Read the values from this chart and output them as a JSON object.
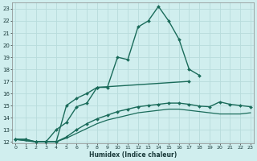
{
  "xlabel": "Humidex (Indice chaleur)",
  "bg_color": "#d0eeee",
  "grid_color": "#b8dcdc",
  "line_color": "#1a6b5a",
  "xlim": [
    -0.3,
    23.3
  ],
  "ylim": [
    11.85,
    23.5
  ],
  "yticks": [
    12,
    13,
    14,
    15,
    16,
    17,
    18,
    19,
    20,
    21,
    22,
    23
  ],
  "xticks": [
    0,
    1,
    2,
    3,
    4,
    5,
    6,
    7,
    8,
    9,
    10,
    11,
    12,
    13,
    14,
    15,
    16,
    17,
    18,
    19,
    20,
    21,
    22,
    23
  ],
  "lines": [
    {
      "x": [
        0,
        1,
        2,
        3,
        4,
        5,
        6,
        7,
        8,
        9,
        10,
        11,
        12,
        13,
        14,
        15,
        16,
        17,
        18
      ],
      "y": [
        12.2,
        12.2,
        12.0,
        12.0,
        12.0,
        15.0,
        15.6,
        16.0,
        16.5,
        16.5,
        19.0,
        18.8,
        21.5,
        22.0,
        23.2,
        22.0,
        20.5,
        18.0,
        17.5
      ],
      "has_marker": true,
      "marker": "D",
      "markersize": 2.0,
      "linewidth": 1.0
    },
    {
      "x": [
        0,
        1,
        2,
        3,
        4,
        5,
        6,
        7,
        8,
        17
      ],
      "y": [
        12.2,
        12.2,
        12.0,
        12.0,
        13.0,
        13.6,
        14.9,
        15.2,
        16.5,
        17.0
      ],
      "has_marker": true,
      "marker": "D",
      "markersize": 2.0,
      "linewidth": 1.0
    },
    {
      "x": [
        0,
        2,
        3,
        4,
        5,
        6,
        7,
        8,
        9,
        10,
        11,
        12,
        13,
        14,
        15,
        16,
        17,
        18,
        19,
        20,
        21,
        22,
        23
      ],
      "y": [
        12.2,
        12.0,
        12.0,
        12.0,
        12.4,
        13.0,
        13.5,
        13.9,
        14.2,
        14.5,
        14.7,
        14.9,
        15.0,
        15.1,
        15.2,
        15.2,
        15.1,
        14.95,
        14.9,
        15.3,
        15.1,
        15.0,
        14.9
      ],
      "has_marker": true,
      "marker": "D",
      "markersize": 2.0,
      "linewidth": 1.0
    },
    {
      "x": [
        0,
        2,
        3,
        4,
        5,
        6,
        7,
        8,
        9,
        10,
        11,
        12,
        13,
        14,
        15,
        16,
        17,
        18,
        19,
        20,
        21,
        22,
        23
      ],
      "y": [
        12.2,
        12.0,
        12.0,
        12.0,
        12.3,
        12.7,
        13.1,
        13.5,
        13.8,
        14.0,
        14.2,
        14.4,
        14.5,
        14.6,
        14.7,
        14.7,
        14.6,
        14.5,
        14.4,
        14.3,
        14.3,
        14.3,
        14.4
      ],
      "has_marker": false,
      "marker": null,
      "markersize": 0,
      "linewidth": 0.9
    }
  ]
}
